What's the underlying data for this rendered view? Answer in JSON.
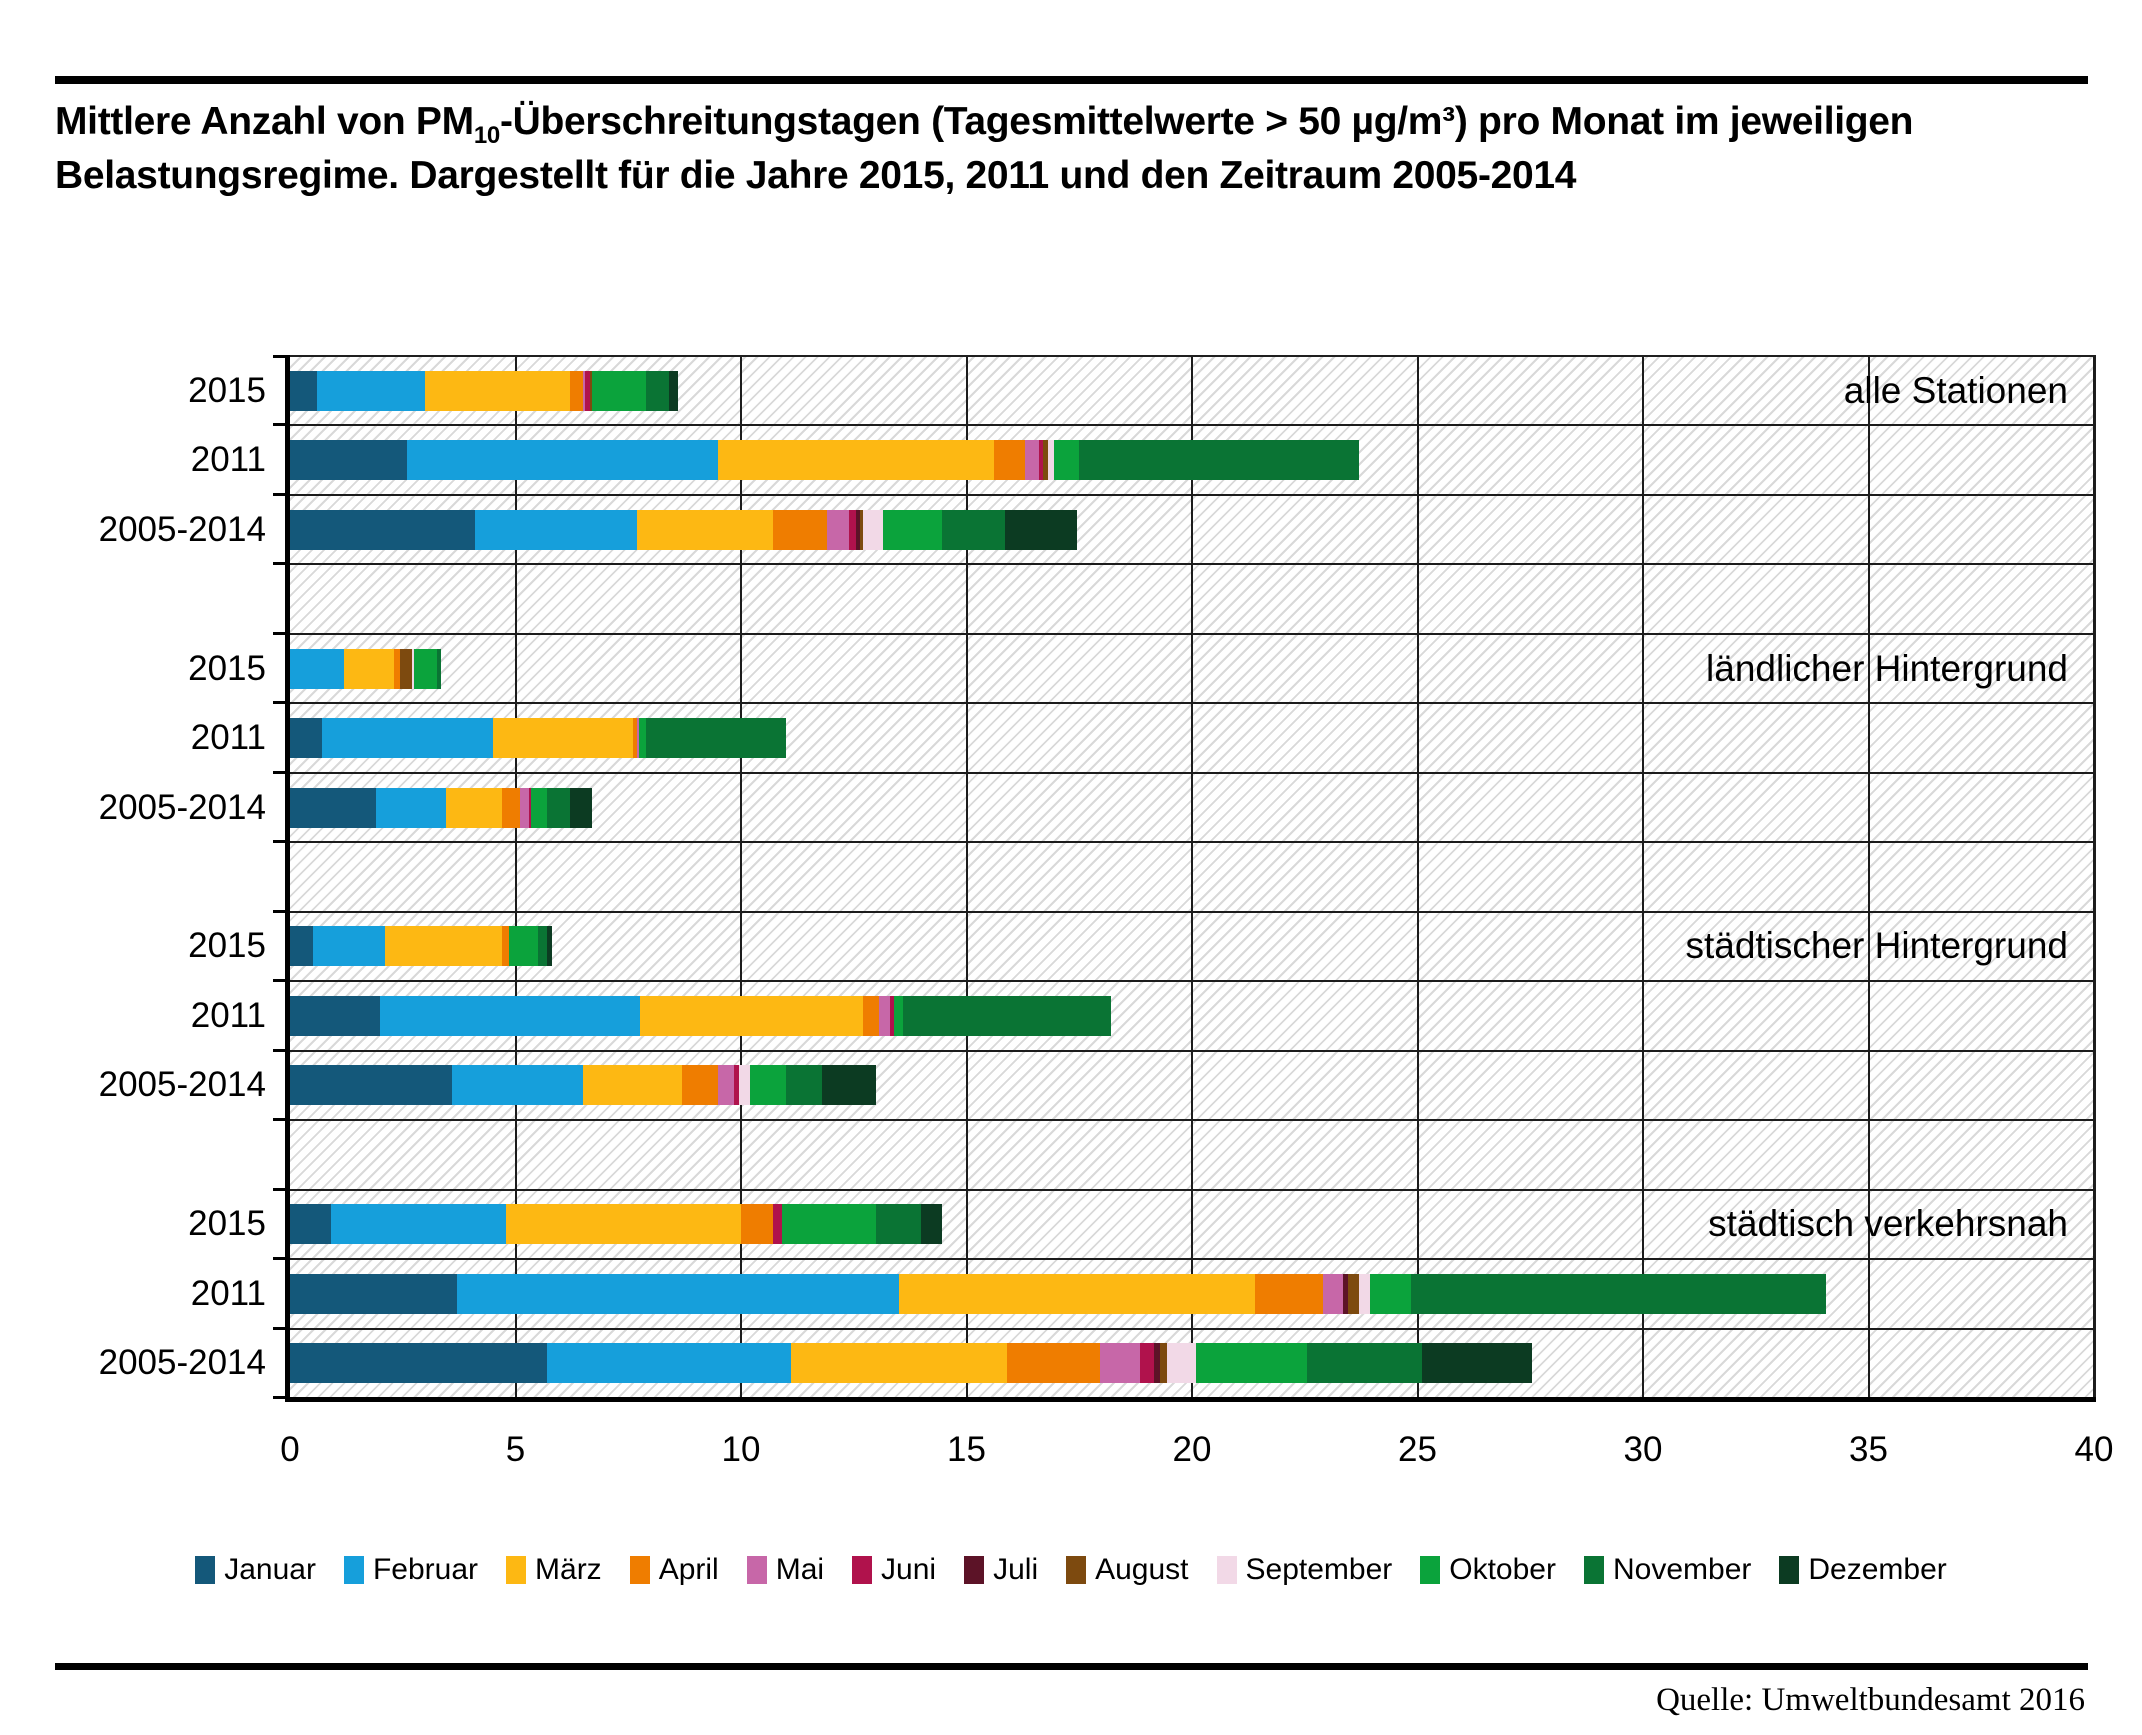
{
  "title": {
    "prefix": "Mittlere Anzahl von PM",
    "subscript": "10",
    "rest": "-Überschreitungstagen (Tagesmittelwerte > 50 µg/m³) pro Monat im jeweiligen Belastungsregime. Dargestellt für die Jahre 2015, 2011 und den Zeitraum 2005-2014"
  },
  "source": "Quelle: Umweltbundesamt 2016",
  "chart_data": {
    "type": "bar",
    "orientation": "horizontal_stacked",
    "unit": "Überschreitungstage pro Monat",
    "xlim": [
      0,
      40
    ],
    "x_ticks": [
      0,
      5,
      10,
      15,
      20,
      25,
      30,
      35,
      40
    ],
    "grid": "vertical_every_5_and_row_separators",
    "background_pattern": "diagonal-hatch",
    "legend_position": "bottom",
    "months": [
      {
        "name": "Januar",
        "color": "#14587a"
      },
      {
        "name": "Februar",
        "color": "#169fdb"
      },
      {
        "name": "März",
        "color": "#fdb813"
      },
      {
        "name": "April",
        "color": "#ef7d00"
      },
      {
        "name": "Mai",
        "color": "#c767a8"
      },
      {
        "name": "Juni",
        "color": "#b0124c"
      },
      {
        "name": "Juli",
        "color": "#5c1327"
      },
      {
        "name": "August",
        "color": "#7d4a0f"
      },
      {
        "name": "September",
        "color": "#f2d9e7"
      },
      {
        "name": "Oktober",
        "color": "#0ba33c"
      },
      {
        "name": "November",
        "color": "#0a7434"
      },
      {
        "name": "Dezember",
        "color": "#0c3b22"
      }
    ],
    "groups": [
      {
        "label": "alle Stationen",
        "rows": [
          {
            "label": "2015",
            "values": [
              0.6,
              2.4,
              3.2,
              0.3,
              0.05,
              0.1,
              0,
              0.05,
              0,
              1.2,
              0.5,
              0.2
            ]
          },
          {
            "label": "2011",
            "values": [
              2.6,
              6.9,
              6.1,
              0.7,
              0.3,
              0.1,
              0,
              0.1,
              0.15,
              0.55,
              6.2,
              0
            ]
          },
          {
            "label": "2005-2014",
            "values": [
              4.1,
              3.6,
              3.0,
              1.2,
              0.5,
              0.15,
              0.1,
              0.05,
              0.45,
              1.3,
              1.4,
              1.6
            ]
          }
        ]
      },
      {
        "label": "ländlicher Hintergrund",
        "rows": [
          {
            "label": "2015",
            "values": [
              0,
              1.2,
              1.1,
              0.15,
              0,
              0,
              0,
              0.25,
              0.05,
              0.5,
              0.1,
              0
            ]
          },
          {
            "label": "2011",
            "values": [
              0.7,
              3.8,
              3.1,
              0.1,
              0.05,
              0,
              0,
              0,
              0,
              0.15,
              3.1,
              0
            ]
          },
          {
            "label": "2005-2014",
            "values": [
              1.9,
              1.55,
              1.25,
              0.4,
              0.2,
              0.05,
              0,
              0,
              0,
              0.35,
              0.5,
              0.5
            ]
          }
        ]
      },
      {
        "label": "städtischer Hintergrund",
        "rows": [
          {
            "label": "2015",
            "values": [
              0.5,
              1.6,
              2.6,
              0.15,
              0,
              0,
              0,
              0,
              0,
              0.65,
              0.2,
              0.1
            ]
          },
          {
            "label": "2011",
            "values": [
              2.0,
              5.75,
              4.95,
              0.35,
              0.25,
              0.1,
              0,
              0,
              0,
              0.2,
              4.6,
              0
            ]
          },
          {
            "label": "2005-2014",
            "values": [
              3.6,
              2.9,
              2.2,
              0.8,
              0.35,
              0.1,
              0,
              0,
              0.25,
              0.8,
              0.8,
              1.2
            ]
          }
        ]
      },
      {
        "label": "städtisch verkehrsnah",
        "rows": [
          {
            "label": "2015",
            "values": [
              0.9,
              3.9,
              5.2,
              0.7,
              0,
              0.2,
              0,
              0,
              0,
              2.1,
              1.0,
              0.45
            ]
          },
          {
            "label": "2011",
            "values": [
              3.7,
              9.8,
              7.9,
              1.5,
              0.45,
              0,
              0.1,
              0.25,
              0.25,
              0.9,
              9.2,
              0
            ]
          },
          {
            "label": "2005-2014",
            "values": [
              5.7,
              5.4,
              4.8,
              2.05,
              0.9,
              0.3,
              0.15,
              0.15,
              0.65,
              2.45,
              2.55,
              2.45
            ]
          }
        ]
      }
    ]
  }
}
